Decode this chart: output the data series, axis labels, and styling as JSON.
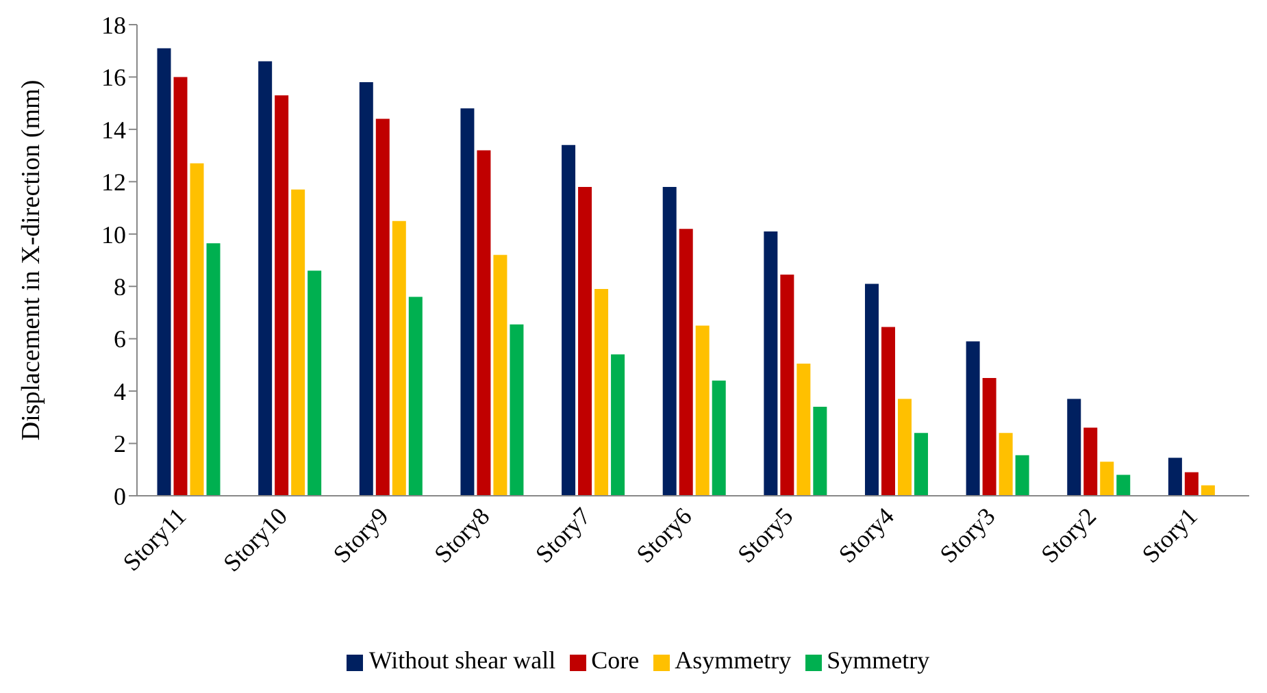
{
  "chart_data": {
    "type": "bar",
    "ylabel": "Displacement in X-direction (mm)",
    "categories": [
      "Story11",
      "Story10",
      "Story9",
      "Story8",
      "Story7",
      "Story6",
      "Story5",
      "Story4",
      "Story3",
      "Story2",
      "Story1"
    ],
    "series": [
      {
        "name": "Without shear wall",
        "color": "#002060",
        "values": [
          17.1,
          16.6,
          15.8,
          14.8,
          13.4,
          11.8,
          10.1,
          8.1,
          5.9,
          3.7,
          1.45
        ]
      },
      {
        "name": "Core",
        "color": "#c00000",
        "values": [
          16.0,
          15.3,
          14.4,
          13.2,
          11.8,
          10.2,
          8.45,
          6.45,
          4.5,
          2.6,
          0.9
        ]
      },
      {
        "name": "Asymmetry",
        "color": "#ffc000",
        "values": [
          12.7,
          11.7,
          10.5,
          9.2,
          7.9,
          6.5,
          5.05,
          3.7,
          2.4,
          1.3,
          0.4
        ]
      },
      {
        "name": "Symmetry",
        "color": "#00b050",
        "values": [
          9.65,
          8.6,
          7.6,
          6.55,
          5.4,
          4.4,
          3.4,
          2.4,
          1.55,
          0.8,
          null
        ]
      }
    ],
    "ylim": [
      0,
      18
    ],
    "yticks": [
      0,
      2,
      4,
      6,
      8,
      10,
      12,
      14,
      16,
      18
    ],
    "grid": false,
    "legend": "bottom"
  }
}
